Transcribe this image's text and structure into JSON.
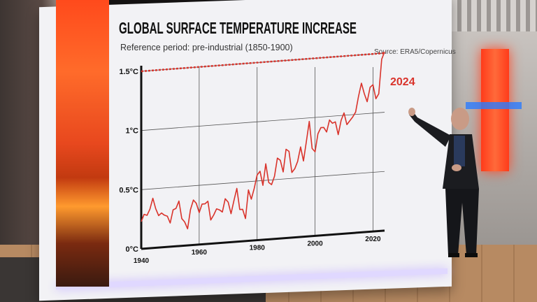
{
  "chart_data": {
    "type": "line",
    "title": "GLOBAL SURFACE TEMPERATURE INCREASE",
    "subtitle": "Reference period: pre-industrial (1850-1900)",
    "source": "Source: ERA5/Copernicus",
    "x_ticks": [
      "1940",
      "1960",
      "1980",
      "2000",
      "2020"
    ],
    "y_ticks": [
      "0°C",
      "0.5°C",
      "1°C",
      "1.5°C"
    ],
    "xlim": [
      1940,
      2024
    ],
    "ylim": [
      0,
      1.5
    ],
    "reference_line": {
      "value": 1.5,
      "label": "1.5°C"
    },
    "end_label": "2024",
    "colors": {
      "line": "#d9332b",
      "dashed": "#d9332b",
      "end_label": "#d9332b",
      "axis": "#111111"
    },
    "series": [
      {
        "x": [
          1940,
          1941,
          1942,
          1943,
          1944,
          1945,
          1946,
          1947,
          1948,
          1949,
          1950,
          1951,
          1952,
          1953,
          1954,
          1955,
          1956,
          1957,
          1958,
          1959,
          1960,
          1961,
          1962,
          1963,
          1964,
          1965,
          1966,
          1967,
          1968,
          1969,
          1970,
          1971,
          1972,
          1973,
          1974,
          1975,
          1976,
          1977,
          1978,
          1979,
          1980,
          1981,
          1982,
          1983,
          1984,
          1985,
          1986,
          1987,
          1988,
          1989,
          1990,
          1991,
          1992,
          1993,
          1994,
          1995,
          1996,
          1997,
          1998,
          1999,
          2000,
          2001,
          2002,
          2003,
          2004,
          2005,
          2006,
          2007,
          2008,
          2009,
          2010,
          2011,
          2012,
          2013,
          2014,
          2015,
          2016,
          2017,
          2018,
          2019,
          2020,
          2021,
          2022,
          2023,
          2024
        ],
        "values": [
          0.23,
          0.29,
          0.28,
          0.33,
          0.42,
          0.33,
          0.27,
          0.29,
          0.27,
          0.26,
          0.2,
          0.31,
          0.32,
          0.38,
          0.23,
          0.2,
          0.14,
          0.3,
          0.38,
          0.35,
          0.27,
          0.34,
          0.34,
          0.36,
          0.2,
          0.24,
          0.29,
          0.28,
          0.26,
          0.37,
          0.34,
          0.24,
          0.35,
          0.45,
          0.27,
          0.27,
          0.19,
          0.43,
          0.35,
          0.44,
          0.55,
          0.58,
          0.46,
          0.64,
          0.48,
          0.46,
          0.53,
          0.68,
          0.66,
          0.56,
          0.75,
          0.73,
          0.55,
          0.58,
          0.64,
          0.76,
          0.64,
          0.8,
          0.97,
          0.74,
          0.71,
          0.86,
          0.91,
          0.91,
          0.87,
          0.97,
          0.94,
          0.95,
          0.84,
          0.96,
          1.02,
          0.92,
          0.95,
          0.98,
          1.02,
          1.15,
          1.26,
          1.17,
          1.1,
          1.22,
          1.24,
          1.12,
          1.16,
          1.45,
          1.51
        ]
      }
    ]
  }
}
